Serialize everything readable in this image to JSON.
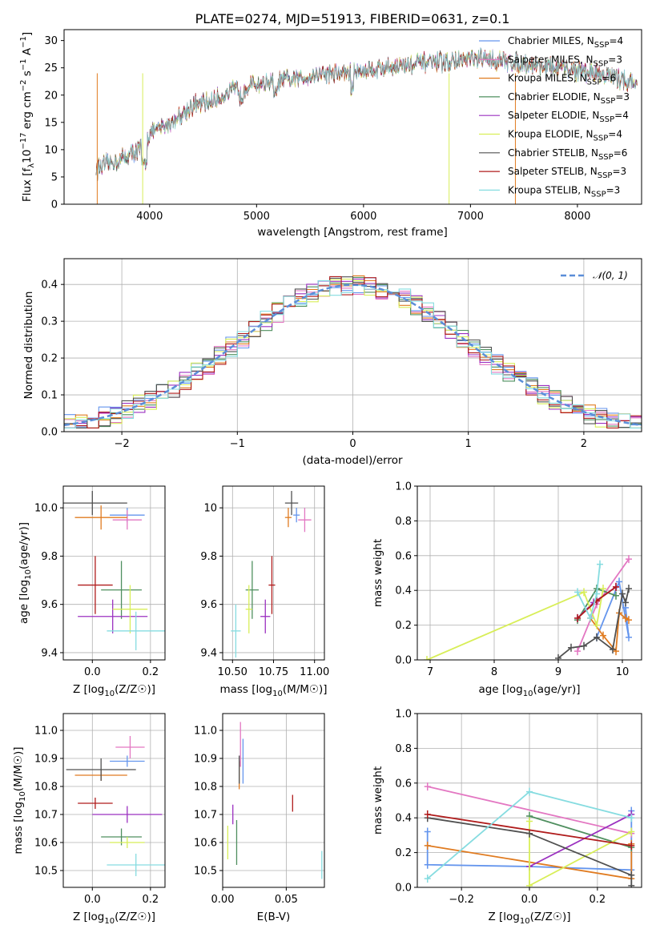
{
  "colors": {
    "chabrier_miles": "#6495ed",
    "salpeter_miles": "#e377c2",
    "kroupa_miles": "#e07b20",
    "chabrier_elodie": "#4f8f5f",
    "salpeter_elodie": "#9b30c0",
    "kroupa_elodie": "#d8ee58",
    "chabrier_stelib": "#505050",
    "salpeter_stelib": "#b01c1c",
    "kroupa_stelib": "#86dce0"
  },
  "chart_data": [
    {
      "id": "spectrum",
      "type": "line",
      "title": "PLATE=0274, MJD=51913, FIBERID=0631, z=0.1",
      "xlabel": "wavelength [Angstrom, rest frame]",
      "ylabel": "Flux [fλ10⁻¹⁷ erg cm⁻² s⁻¹ A⁻¹]",
      "xlim": [
        3200,
        8600
      ],
      "ylim": [
        0,
        32
      ],
      "xticks": [
        4000,
        5000,
        6000,
        7000,
        8000
      ],
      "yticks": [
        0,
        5,
        10,
        15,
        20,
        25,
        30
      ],
      "legend_position": "right",
      "continuum": {
        "x": [
          3500,
          3700,
          3900,
          4000,
          4200,
          4400,
          4600,
          4800,
          5000,
          5200,
          5400,
          5600,
          5800,
          6000,
          6200,
          6400,
          6600,
          6800,
          7000,
          7200,
          7400,
          7600,
          7800,
          8000,
          8200,
          8400,
          8550
        ],
        "y": [
          6.5,
          8,
          10,
          13,
          15,
          18,
          19,
          21,
          22,
          22.5,
          23,
          24,
          24,
          24.5,
          25,
          25.5,
          26,
          26,
          26.5,
          26.5,
          26,
          25.5,
          25,
          24.5,
          24,
          23,
          22
        ]
      },
      "series": [
        {
          "name": "Chabrier MILES, N_SSP=4",
          "label_main": "Chabrier MILES, N",
          "label_sub": "SSP",
          "label_end": "=4",
          "color_key": "chabrier_miles"
        },
        {
          "name": "Salpeter MILES, N_SSP=3",
          "label_main": "Salpeter MILES, N",
          "label_sub": "SSP",
          "label_end": "=3",
          "color_key": "salpeter_miles"
        },
        {
          "name": "Kroupa MILES, N_SSP=6",
          "label_main": "Kroupa MILES, N",
          "label_sub": "SSP",
          "label_end": "=6",
          "color_key": "kroupa_miles"
        },
        {
          "name": "Chabrier ELODIE, N_SSP=3",
          "label_main": "Chabrier ELODIE, N",
          "label_sub": "SSP",
          "label_end": "=3",
          "color_key": "chabrier_elodie"
        },
        {
          "name": "Salpeter ELODIE, N_SSP=4",
          "label_main": "Salpeter ELODIE, N",
          "label_sub": "SSP",
          "label_end": "=4",
          "color_key": "salpeter_elodie"
        },
        {
          "name": "Kroupa ELODIE, N_SSP=4",
          "label_main": "Kroupa ELODIE, N",
          "label_sub": "SSP",
          "label_end": "=4",
          "color_key": "kroupa_elodie"
        },
        {
          "name": "Chabrier STELIB, N_SSP=6",
          "label_main": "Chabrier STELIB, N",
          "label_sub": "SSP",
          "label_end": "=6",
          "color_key": "chabrier_stelib"
        },
        {
          "name": "Salpeter STELIB, N_SSP=3",
          "label_main": "Salpeter STELIB, N",
          "label_sub": "SSP",
          "label_end": "=3",
          "color_key": "salpeter_stelib"
        },
        {
          "name": "Kroupa STELIB, N_SSP=3",
          "label_main": "Kroupa STELIB, N",
          "label_sub": "SSP",
          "label_end": "=3",
          "color_key": "kroupa_stelib"
        }
      ]
    },
    {
      "id": "residuals",
      "type": "line",
      "xlabel": "(data-model)/error",
      "ylabel": "Normed distribution",
      "xlim": [
        -2.5,
        2.5
      ],
      "ylim": [
        0,
        0.47
      ],
      "xticks": [
        -2,
        -1,
        0,
        1,
        2
      ],
      "xticklabels": [
        "−2",
        "−1",
        "0",
        "1",
        "2"
      ],
      "yticks": [
        0,
        0.1,
        0.2,
        0.3,
        0.4
      ],
      "yticklabels": [
        "0.0",
        "0.1",
        "0.2",
        "0.3",
        "0.4"
      ],
      "grid": true,
      "legend": "𝒩(0, 1)",
      "legend_position": "top-right",
      "normal_curve": {
        "mean": 0,
        "sigma": 1
      }
    },
    {
      "id": "age_vs_Z",
      "type": "scatter",
      "xlabel_main": "Z [log",
      "xlabel_sub": "10",
      "xlabel_end": "(Z/Z☉)]",
      "ylabel_main": "age  [log",
      "ylabel_sub": "10",
      "ylabel_end": "(age/yr)]",
      "xlim": [
        -0.1,
        0.25
      ],
      "ylim": [
        9.37,
        10.09
      ],
      "xticks": [
        0.0,
        0.2
      ],
      "xticklabels": [
        "0.0",
        "0.2"
      ],
      "yticks": [
        9.4,
        9.6,
        9.8,
        10.0
      ],
      "yticklabels": [
        "9.4",
        "9.6",
        "9.8",
        "10.0"
      ],
      "grid": true,
      "points": [
        {
          "c": "chabrier_miles",
          "x": 0.12,
          "y": 9.97,
          "xerr": 0.06,
          "yerr": 0.03
        },
        {
          "c": "salpeter_miles",
          "x": 0.12,
          "y": 9.95,
          "xerr": 0.05,
          "yerr": 0.04
        },
        {
          "c": "kroupa_miles",
          "x": 0.03,
          "y": 9.96,
          "xerr": 0.09,
          "yerr": 0.05
        },
        {
          "c": "chabrier_elodie",
          "x": 0.1,
          "y": 9.66,
          "xerr": 0.07,
          "yerr": 0.12
        },
        {
          "c": "salpeter_elodie",
          "x": 0.07,
          "y": 9.55,
          "xerr": 0.12,
          "yerr": 0.07
        },
        {
          "c": "kroupa_elodie",
          "x": 0.13,
          "y": 9.58,
          "xerr": 0.06,
          "yerr": 0.1
        },
        {
          "c": "chabrier_stelib",
          "x": 0.0,
          "y": 10.02,
          "xerr": 0.12,
          "yerr": 0.05
        },
        {
          "c": "salpeter_stelib",
          "x": 0.01,
          "y": 9.68,
          "xerr": 0.06,
          "yerr": 0.12
        },
        {
          "c": "kroupa_stelib",
          "x": 0.15,
          "y": 9.49,
          "xerr": 0.1,
          "yerr": 0.08
        }
      ]
    },
    {
      "id": "age_vs_mass",
      "type": "scatter",
      "xlabel_main": "mass [log",
      "xlabel_sub": "10",
      "xlabel_end": "(M/M☉)]",
      "xlim": [
        10.44,
        11.06
      ],
      "ylim": [
        9.37,
        10.09
      ],
      "xticks": [
        10.5,
        10.75,
        11.0
      ],
      "xticklabels": [
        "10.50",
        "10.75",
        "11.00"
      ],
      "yticks": [
        9.4,
        9.6,
        9.8,
        10.0
      ],
      "grid": true,
      "points": [
        {
          "c": "chabrier_miles",
          "x": 10.89,
          "y": 9.97,
          "xerr": 0.02,
          "yerr": 0.03
        },
        {
          "c": "salpeter_miles",
          "x": 10.94,
          "y": 9.95,
          "xerr": 0.04,
          "yerr": 0.05
        },
        {
          "c": "kroupa_miles",
          "x": 10.84,
          "y": 9.96,
          "xerr": 0.02,
          "yerr": 0.04
        },
        {
          "c": "chabrier_elodie",
          "x": 10.62,
          "y": 9.66,
          "xerr": 0.04,
          "yerr": 0.12
        },
        {
          "c": "salpeter_elodie",
          "x": 10.7,
          "y": 9.55,
          "xerr": 0.03,
          "yerr": 0.07
        },
        {
          "c": "kroupa_elodie",
          "x": 10.6,
          "y": 9.58,
          "xerr": 0.02,
          "yerr": 0.1
        },
        {
          "c": "chabrier_stelib",
          "x": 10.86,
          "y": 10.02,
          "xerr": 0.04,
          "yerr": 0.05
        },
        {
          "c": "salpeter_stelib",
          "x": 10.74,
          "y": 9.68,
          "xerr": 0.02,
          "yerr": 0.12
        },
        {
          "c": "kroupa_stelib",
          "x": 10.52,
          "y": 9.49,
          "xerr": 0.03,
          "yerr": 0.11
        }
      ]
    },
    {
      "id": "weight_vs_age",
      "type": "line",
      "xlabel_main": "age  [log",
      "xlabel_sub": "10",
      "xlabel_end": "(age/yr)]",
      "ylabel": "mass weight",
      "xlim": [
        6.8,
        10.3
      ],
      "ylim": [
        0,
        1
      ],
      "xticks": [
        7,
        8,
        9,
        10
      ],
      "yticks": [
        0,
        0.2,
        0.4,
        0.6,
        0.8,
        1.0
      ],
      "yticklabels": [
        "0.0",
        "0.2",
        "0.4",
        "0.6",
        "0.8",
        "1.0"
      ],
      "grid": true,
      "series": [
        {
          "c": "chabrier_miles",
          "x": [
            9.6,
            9.95,
            10.1,
            10.05
          ],
          "y": [
            0.13,
            0.45,
            0.13,
            0.3
          ]
        },
        {
          "c": "salpeter_miles",
          "x": [
            9.3,
            9.6,
            10.1
          ],
          "y": [
            0.05,
            0.32,
            0.58
          ]
        },
        {
          "c": "kroupa_miles",
          "x": [
            9.5,
            9.7,
            9.9,
            9.95,
            10.05,
            10.1
          ],
          "y": [
            0.24,
            0.14,
            0.05,
            0.27,
            0.24,
            0.23
          ]
        },
        {
          "c": "chabrier_elodie",
          "x": [
            9.3,
            9.6,
            9.9
          ],
          "y": [
            0.23,
            0.41,
            0.37
          ]
        },
        {
          "c": "salpeter_elodie",
          "x": [
            9.3,
            9.55,
            9.9
          ],
          "y": [
            0.24,
            0.33,
            0.42
          ]
        },
        {
          "c": "kroupa_elodie",
          "x": [
            6.95,
            9.4,
            9.6,
            9.7
          ],
          "y": [
            0.0,
            0.39,
            0.2,
            0.41
          ]
        },
        {
          "c": "chabrier_stelib",
          "x": [
            9.0,
            9.2,
            9.4,
            9.6,
            9.85,
            10.0,
            10.05,
            10.1
          ],
          "y": [
            0.01,
            0.07,
            0.08,
            0.13,
            0.06,
            0.38,
            0.33,
            0.41
          ]
        },
        {
          "c": "salpeter_stelib",
          "x": [
            9.3,
            9.6,
            9.9
          ],
          "y": [
            0.24,
            0.34,
            0.42
          ]
        },
        {
          "c": "kroupa_stelib",
          "x": [
            9.3,
            9.5,
            9.6,
            9.65
          ],
          "y": [
            0.39,
            0.24,
            0.38,
            0.55
          ]
        }
      ]
    },
    {
      "id": "mass_vs_Z",
      "type": "scatter",
      "xlabel_main": "Z [log",
      "xlabel_sub": "10",
      "xlabel_end": "(Z/Z☉)]",
      "ylabel_main": "mass [log",
      "ylabel_sub": "10",
      "ylabel_end": "(M/M☉)]",
      "xlim": [
        -0.1,
        0.25
      ],
      "ylim": [
        10.44,
        11.06
      ],
      "xticks": [
        0.0,
        0.2
      ],
      "xticklabels": [
        "0.0",
        "0.2"
      ],
      "yticks": [
        10.5,
        10.6,
        10.7,
        10.8,
        10.9,
        11.0
      ],
      "yticklabels": [
        "10.5",
        "10.6",
        "10.7",
        "10.8",
        "10.9",
        "11.0"
      ],
      "grid": true,
      "points": [
        {
          "c": "chabrier_miles",
          "x": 0.12,
          "y": 10.89,
          "xerr": 0.06,
          "yerr": 0.02
        },
        {
          "c": "salpeter_miles",
          "x": 0.13,
          "y": 10.94,
          "xerr": 0.05,
          "yerr": 0.04
        },
        {
          "c": "kroupa_miles",
          "x": 0.03,
          "y": 10.84,
          "xerr": 0.09,
          "yerr": 0.02
        },
        {
          "c": "chabrier_elodie",
          "x": 0.1,
          "y": 10.62,
          "xerr": 0.07,
          "yerr": 0.03
        },
        {
          "c": "salpeter_elodie",
          "x": 0.12,
          "y": 10.7,
          "xerr": 0.12,
          "yerr": 0.03
        },
        {
          "c": "kroupa_elodie",
          "x": 0.12,
          "y": 10.6,
          "xerr": 0.06,
          "yerr": 0.02
        },
        {
          "c": "chabrier_stelib",
          "x": 0.03,
          "y": 10.86,
          "xerr": 0.12,
          "yerr": 0.04
        },
        {
          "c": "salpeter_stelib",
          "x": 0.01,
          "y": 10.74,
          "xerr": 0.06,
          "yerr": 0.02
        },
        {
          "c": "kroupa_stelib",
          "x": 0.15,
          "y": 10.52,
          "xerr": 0.1,
          "yerr": 0.04
        }
      ]
    },
    {
      "id": "mass_vs_ebv",
      "type": "scatter",
      "xlabel": "E(B-V)",
      "xlim": [
        0.0,
        0.08
      ],
      "ylim": [
        10.44,
        11.06
      ],
      "xticks": [
        0.0,
        0.05
      ],
      "xticklabels": [
        "0.00",
        "0.05"
      ],
      "yticks": [
        10.5,
        10.6,
        10.7,
        10.8,
        10.9,
        11.0
      ],
      "grid": true,
      "points": [
        {
          "c": "chabrier_miles",
          "x": 0.016,
          "y": 10.89,
          "xerr": 0.0,
          "yerr": 0.08
        },
        {
          "c": "salpeter_miles",
          "x": 0.014,
          "y": 10.95,
          "xerr": 0.0,
          "yerr": 0.08
        },
        {
          "c": "kroupa_miles",
          "x": 0.013,
          "y": 10.84,
          "xerr": 0.0,
          "yerr": 0.05
        },
        {
          "c": "chabrier_elodie",
          "x": 0.011,
          "y": 10.6,
          "xerr": 0.0,
          "yerr": 0.08
        },
        {
          "c": "salpeter_elodie",
          "x": 0.008,
          "y": 10.7,
          "xerr": 0.0,
          "yerr": 0.035
        },
        {
          "c": "kroupa_elodie",
          "x": 0.004,
          "y": 10.6,
          "xerr": 0.0,
          "yerr": 0.06
        },
        {
          "c": "chabrier_stelib",
          "x": 0.013,
          "y": 10.86,
          "xerr": 0.0,
          "yerr": 0.05
        },
        {
          "c": "salpeter_stelib",
          "x": 0.055,
          "y": 10.74,
          "xerr": 0.0,
          "yerr": 0.03
        },
        {
          "c": "kroupa_stelib",
          "x": 0.078,
          "y": 10.52,
          "xerr": 0.0,
          "yerr": 0.05
        }
      ]
    },
    {
      "id": "weight_vs_Z",
      "type": "line",
      "xlabel_main": "Z [log",
      "xlabel_sub": "10",
      "xlabel_end": "(Z/Z☉)]",
      "ylabel": "mass weight",
      "xlim": [
        -0.33,
        0.33
      ],
      "ylim": [
        0,
        1
      ],
      "xticks": [
        -0.2,
        0.0,
        0.2
      ],
      "xticklabels": [
        "−0.2",
        "0.0",
        "0.2"
      ],
      "yticks": [
        0,
        0.2,
        0.4,
        0.6,
        0.8,
        1.0
      ],
      "yticklabels": [
        "0.0",
        "0.2",
        "0.4",
        "0.6",
        "0.8",
        "1.0"
      ],
      "grid": true,
      "series": [
        {
          "c": "chabrier_miles",
          "x": [
            -0.3,
            -0.3,
            0.0,
            0.3,
            0.3
          ],
          "y": [
            0.32,
            0.13,
            0.12,
            0.1,
            0.44
          ]
        },
        {
          "c": "salpeter_miles",
          "x": [
            -0.3,
            0.3
          ],
          "y": [
            0.58,
            0.31
          ]
        },
        {
          "c": "kroupa_miles",
          "x": [
            -0.3,
            0.3,
            0.3
          ],
          "y": [
            0.24,
            0.05,
            0.25
          ]
        },
        {
          "c": "chabrier_elodie",
          "x": [
            0.0,
            0.3
          ],
          "y": [
            0.41,
            0.23
          ]
        },
        {
          "c": "salpeter_elodie",
          "x": [
            0.0,
            0.3
          ],
          "y": [
            0.12,
            0.42
          ]
        },
        {
          "c": "kroupa_elodie",
          "x": [
            0.0,
            0.0,
            0.3
          ],
          "y": [
            0.38,
            0.01,
            0.32
          ]
        },
        {
          "c": "chabrier_stelib",
          "x": [
            -0.3,
            0.0,
            0.3,
            0.3
          ],
          "y": [
            0.4,
            0.31,
            0.07,
            0.01
          ]
        },
        {
          "c": "salpeter_stelib",
          "x": [
            -0.3,
            0.3
          ],
          "y": [
            0.42,
            0.24
          ]
        },
        {
          "c": "kroupa_stelib",
          "x": [
            -0.3,
            0.0,
            0.3
          ],
          "y": [
            0.05,
            0.55,
            0.4
          ]
        }
      ]
    }
  ]
}
